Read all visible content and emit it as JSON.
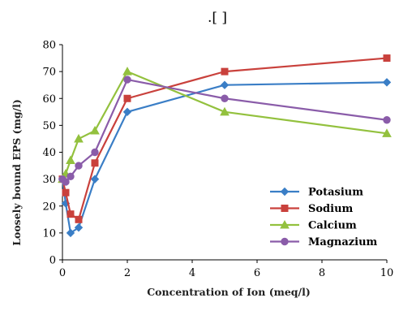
{
  "caption": ".[ ]",
  "chart_data": {
    "type": "line",
    "title": "",
    "xlabel": "Concentration of Ion (meq/l)",
    "ylabel": "Loosely bound EPS (mg/l)",
    "xlim": [
      0,
      10
    ],
    "ylim": [
      0,
      80
    ],
    "xticks": [
      0,
      2,
      4,
      6,
      8,
      10
    ],
    "yticks": [
      0,
      10,
      20,
      30,
      40,
      50,
      60,
      70,
      80
    ],
    "grid": false,
    "legend_position": "bottom-right",
    "series": [
      {
        "name": "Potasium",
        "color": "#3a7ec6",
        "marker": "diamond",
        "x": [
          0,
          0.1,
          0.25,
          0.5,
          1,
          2,
          5,
          10
        ],
        "y": [
          30,
          21,
          10,
          12,
          30,
          55,
          65,
          66
        ]
      },
      {
        "name": "Sodium",
        "color": "#c9413c",
        "marker": "square",
        "x": [
          0,
          0.1,
          0.25,
          0.5,
          1,
          2,
          5,
          10
        ],
        "y": [
          30,
          25,
          17,
          15,
          36,
          60,
          70,
          75
        ]
      },
      {
        "name": "Calcium",
        "color": "#93c13e",
        "marker": "triangle",
        "x": [
          0,
          0.1,
          0.25,
          0.5,
          1,
          2,
          5,
          10
        ],
        "y": [
          30,
          32,
          37,
          45,
          48,
          70,
          55,
          47
        ]
      },
      {
        "name": "Magnazium",
        "color": "#8a5ca9",
        "marker": "circle",
        "x": [
          0,
          0.1,
          0.25,
          0.5,
          1,
          2,
          5,
          10
        ],
        "y": [
          30,
          29,
          31,
          35,
          40,
          67,
          60,
          52
        ]
      }
    ]
  }
}
